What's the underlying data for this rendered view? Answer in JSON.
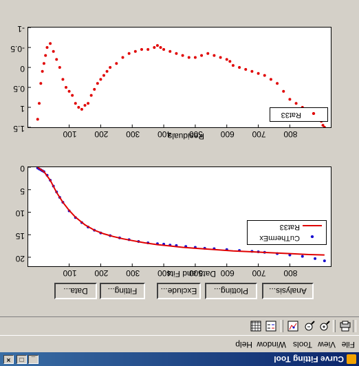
{
  "window": {
    "title": "Curve Fitting Tool",
    "minimize": "_",
    "restore": "□",
    "close": "×"
  },
  "menu": [
    "File",
    "View",
    "Tools",
    "Window",
    "Help"
  ],
  "toolbar": [
    "print-icon",
    "zoom-in-icon",
    "zoom-out-icon",
    "data-cursor-icon",
    "legend-toggle-icon",
    "grid-toggle-icon"
  ],
  "buttons": [
    "Data...",
    "Fitting...",
    "Exclude...",
    "Plotting...",
    "Analysis..."
  ],
  "colors": {
    "data": "#1a0fd0",
    "fit": "#e00000",
    "residual": "#e00000"
  },
  "chart_data": [
    {
      "type": "scatter",
      "xlabel": "Data and Fits",
      "ylabel": "",
      "xlim": [
        -30,
        930
      ],
      "ylim": [
        0,
        22
      ],
      "y_reversed": true,
      "xticks": [
        100,
        200,
        300,
        400,
        500,
        600,
        700,
        800
      ],
      "yticks": [
        0,
        5,
        10,
        15,
        20
      ],
      "legend_position": "top-right",
      "series": [
        {
          "name": "CuThermEx",
          "type": "scatter",
          "marker": "dot",
          "x": [
            0,
            5,
            10,
            15,
            20,
            30,
            40,
            50,
            60,
            70,
            80,
            100,
            120,
            140,
            160,
            180,
            200,
            230,
            260,
            290,
            320,
            350,
            380,
            400,
            420,
            440,
            470,
            500,
            530,
            560,
            600,
            640,
            680,
            700,
            720,
            760,
            800,
            840,
            880,
            910
          ],
          "y": [
            0.2,
            0.4,
            0.6,
            0.8,
            1.0,
            1.8,
            2.9,
            4.2,
            5.5,
            6.7,
            7.8,
            9.7,
            11.2,
            12.3,
            13.3,
            14.0,
            14.6,
            15.2,
            15.7,
            16.1,
            16.5,
            16.8,
            17.0,
            17.1,
            17.3,
            17.4,
            17.6,
            17.8,
            18.0,
            18.1,
            18.3,
            18.5,
            18.7,
            18.8,
            18.9,
            19.2,
            19.5,
            19.8,
            20.3,
            20.8
          ]
        },
        {
          "name": "Rat33",
          "type": "line",
          "x": [
            0,
            20,
            40,
            60,
            80,
            100,
            120,
            150,
            180,
            210,
            240,
            270,
            300,
            340,
            380,
            420,
            460,
            500,
            560,
            620,
            680,
            740,
            800,
            860,
            910
          ],
          "y": [
            0.0,
            1.0,
            2.9,
            5.6,
            7.8,
            9.6,
            11.1,
            12.8,
            14.0,
            14.8,
            15.4,
            15.9,
            16.3,
            16.8,
            17.2,
            17.5,
            17.8,
            18.0,
            18.3,
            18.6,
            18.8,
            19.0,
            19.2,
            19.4,
            19.5
          ]
        }
      ]
    },
    {
      "type": "scatter",
      "xlabel": "Residuals",
      "ylabel": "",
      "xlim": [
        -30,
        930
      ],
      "ylim": [
        -1,
        1.5
      ],
      "y_reversed": true,
      "xticks": [
        100,
        200,
        300,
        400,
        500,
        600,
        700,
        800
      ],
      "yticks": [
        -1,
        -0.5,
        0,
        0.5,
        1,
        1.5
      ],
      "legend_position": "top-right",
      "series": [
        {
          "name": "Rat33",
          "type": "scatter",
          "marker": "dot",
          "x": [
            0,
            5,
            10,
            15,
            20,
            25,
            30,
            40,
            50,
            60,
            70,
            80,
            90,
            100,
            110,
            120,
            130,
            140,
            150,
            160,
            170,
            180,
            190,
            200,
            210,
            220,
            230,
            250,
            270,
            290,
            310,
            330,
            350,
            370,
            380,
            390,
            400,
            420,
            440,
            460,
            480,
            500,
            520,
            540,
            560,
            580,
            600,
            610,
            620,
            640,
            660,
            680,
            700,
            720,
            740,
            760,
            780,
            800,
            820,
            840,
            860,
            880,
            890,
            900,
            905,
            910
          ],
          "y": [
            1.3,
            0.9,
            0.4,
            0.1,
            -0.1,
            -0.3,
            -0.5,
            -0.6,
            -0.4,
            -0.2,
            0.0,
            0.3,
            0.5,
            0.6,
            0.7,
            0.9,
            1.0,
            1.05,
            0.95,
            0.9,
            0.7,
            0.55,
            0.4,
            0.3,
            0.2,
            0.1,
            0.0,
            -0.1,
            -0.25,
            -0.35,
            -0.4,
            -0.45,
            -0.45,
            -0.5,
            -0.55,
            -0.5,
            -0.45,
            -0.4,
            -0.35,
            -0.3,
            -0.25,
            -0.25,
            -0.3,
            -0.35,
            -0.3,
            -0.25,
            -0.2,
            -0.15,
            -0.05,
            0.0,
            0.05,
            0.1,
            0.15,
            0.2,
            0.3,
            0.4,
            0.6,
            0.8,
            0.9,
            1.0,
            1.1,
            1.2,
            1.25,
            1.35,
            1.45,
            1.5
          ]
        }
      ]
    }
  ]
}
